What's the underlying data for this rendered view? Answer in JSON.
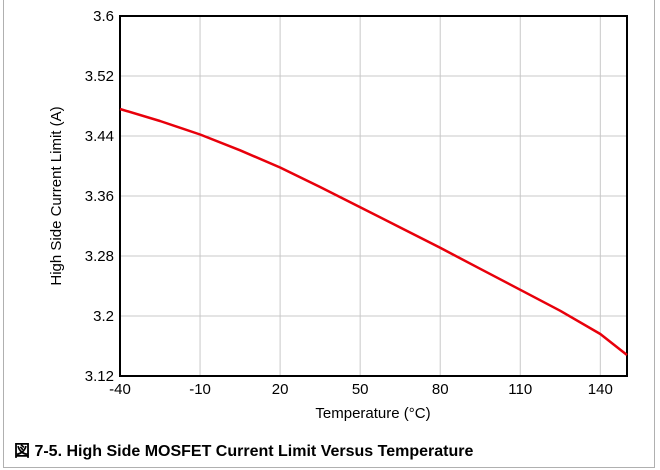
{
  "chart_data": {
    "type": "line",
    "title": "",
    "xlabel": "Temperature (°C)",
    "ylabel": "High Side Current Limit (A)",
    "xlim": [
      -40,
      150
    ],
    "ylim": [
      3.12,
      3.6
    ],
    "x_ticks": [
      -40,
      -10,
      20,
      50,
      80,
      110,
      140
    ],
    "x_tick_labels": [
      "-40",
      "-10",
      "20",
      "50",
      "80",
      "110",
      "140"
    ],
    "y_ticks": [
      3.12,
      3.2,
      3.28,
      3.36,
      3.44,
      3.52,
      3.6
    ],
    "y_tick_labels": [
      "3.12",
      "3.2",
      "3.28",
      "3.36",
      "3.44",
      "3.52",
      "3.6"
    ],
    "grid": true,
    "series": [
      {
        "color": "#e8000b",
        "x": [
          -40,
          -25,
          -10,
          5,
          20,
          35,
          50,
          65,
          80,
          95,
          110,
          125,
          140,
          150
        ],
        "y": [
          3.476,
          3.46,
          3.442,
          3.421,
          3.398,
          3.372,
          3.345,
          3.318,
          3.291,
          3.263,
          3.235,
          3.207,
          3.176,
          3.148
        ]
      }
    ]
  },
  "caption": "図 7-5. High Side MOSFET Current Limit Versus Temperature"
}
